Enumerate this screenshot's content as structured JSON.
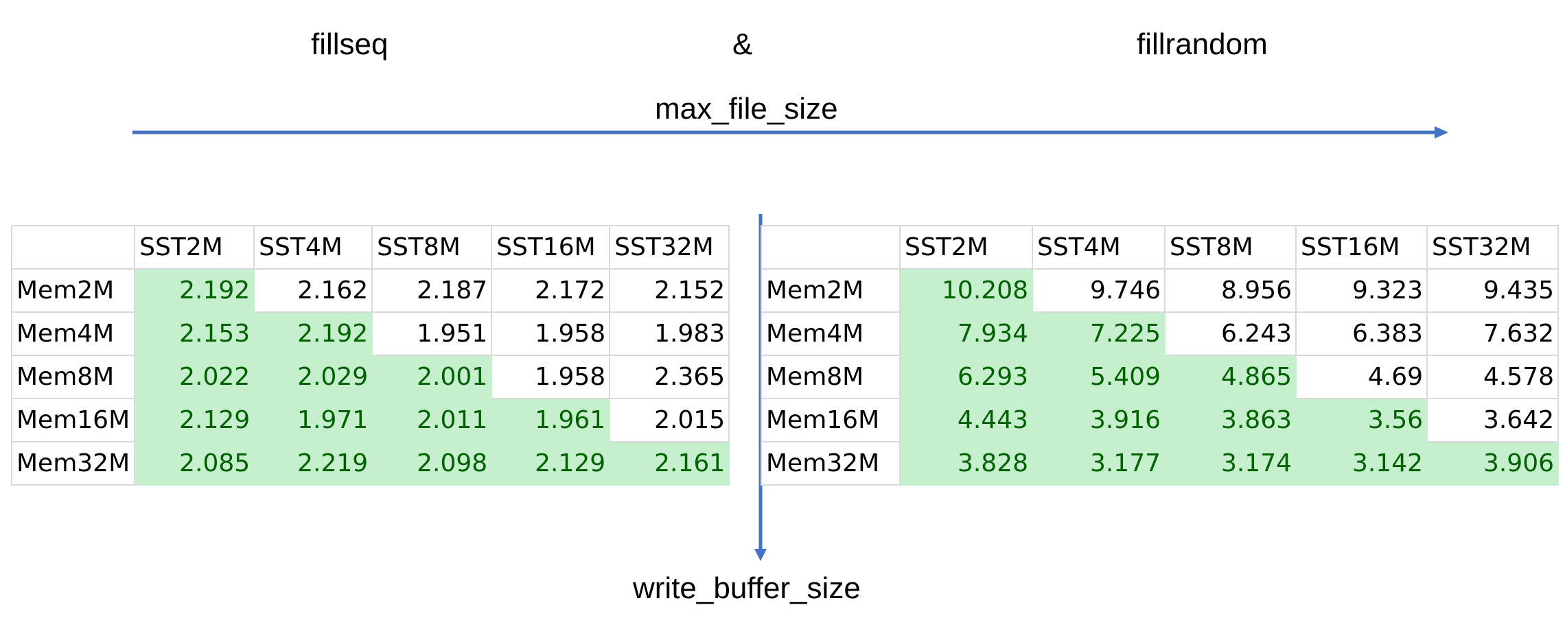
{
  "headings": {
    "left": "fillseq",
    "connector": "&",
    "right": "fillrandom",
    "horizontal_axis": "max_file_size",
    "vertical_axis": "write_buffer_size"
  },
  "colors": {
    "arrow": "#4472c4",
    "highlight_fill": "#c6efce",
    "highlight_text": "#006100",
    "grid_line": "#d9d9d9"
  },
  "columns": [
    "",
    "SST2M",
    "SST4M",
    "SST8M",
    "SST16M",
    "SST32M"
  ],
  "tables": {
    "fillseq": {
      "rows": [
        {
          "label": "Mem2M",
          "values": [
            "2.192",
            "2.162",
            "2.187",
            "2.172",
            "2.152"
          ],
          "highlighted": [
            true,
            false,
            false,
            false,
            false
          ]
        },
        {
          "label": "Mem4M",
          "values": [
            "2.153",
            "2.192",
            "1.951",
            "1.958",
            "1.983"
          ],
          "highlighted": [
            true,
            true,
            false,
            false,
            false
          ]
        },
        {
          "label": "Mem8M",
          "values": [
            "2.022",
            "2.029",
            "2.001",
            "1.958",
            "2.365"
          ],
          "highlighted": [
            true,
            true,
            true,
            false,
            false
          ]
        },
        {
          "label": "Mem16M",
          "values": [
            "2.129",
            "1.971",
            "2.011",
            "1.961",
            "2.015"
          ],
          "highlighted": [
            true,
            true,
            true,
            true,
            false
          ]
        },
        {
          "label": "Mem32M",
          "values": [
            "2.085",
            "2.219",
            "2.098",
            "2.129",
            "2.161"
          ],
          "highlighted": [
            true,
            true,
            true,
            true,
            true
          ]
        }
      ]
    },
    "fillrandom": {
      "rows": [
        {
          "label": "Mem2M",
          "values": [
            "10.208",
            "9.746",
            "8.956",
            "9.323",
            "9.435"
          ],
          "highlighted": [
            true,
            false,
            false,
            false,
            false
          ]
        },
        {
          "label": "Mem4M",
          "values": [
            "7.934",
            "7.225",
            "6.243",
            "6.383",
            "7.632"
          ],
          "highlighted": [
            true,
            true,
            false,
            false,
            false
          ]
        },
        {
          "label": "Mem8M",
          "values": [
            "6.293",
            "5.409",
            "4.865",
            "4.69",
            "4.578"
          ],
          "highlighted": [
            true,
            true,
            true,
            false,
            false
          ]
        },
        {
          "label": "Mem16M",
          "values": [
            "4.443",
            "3.916",
            "3.863",
            "3.56",
            "3.642"
          ],
          "highlighted": [
            true,
            true,
            true,
            true,
            false
          ]
        },
        {
          "label": "Mem32M",
          "values": [
            "3.828",
            "3.177",
            "3.174",
            "3.142",
            "3.906"
          ],
          "highlighted": [
            true,
            true,
            true,
            true,
            true
          ]
        }
      ]
    }
  }
}
